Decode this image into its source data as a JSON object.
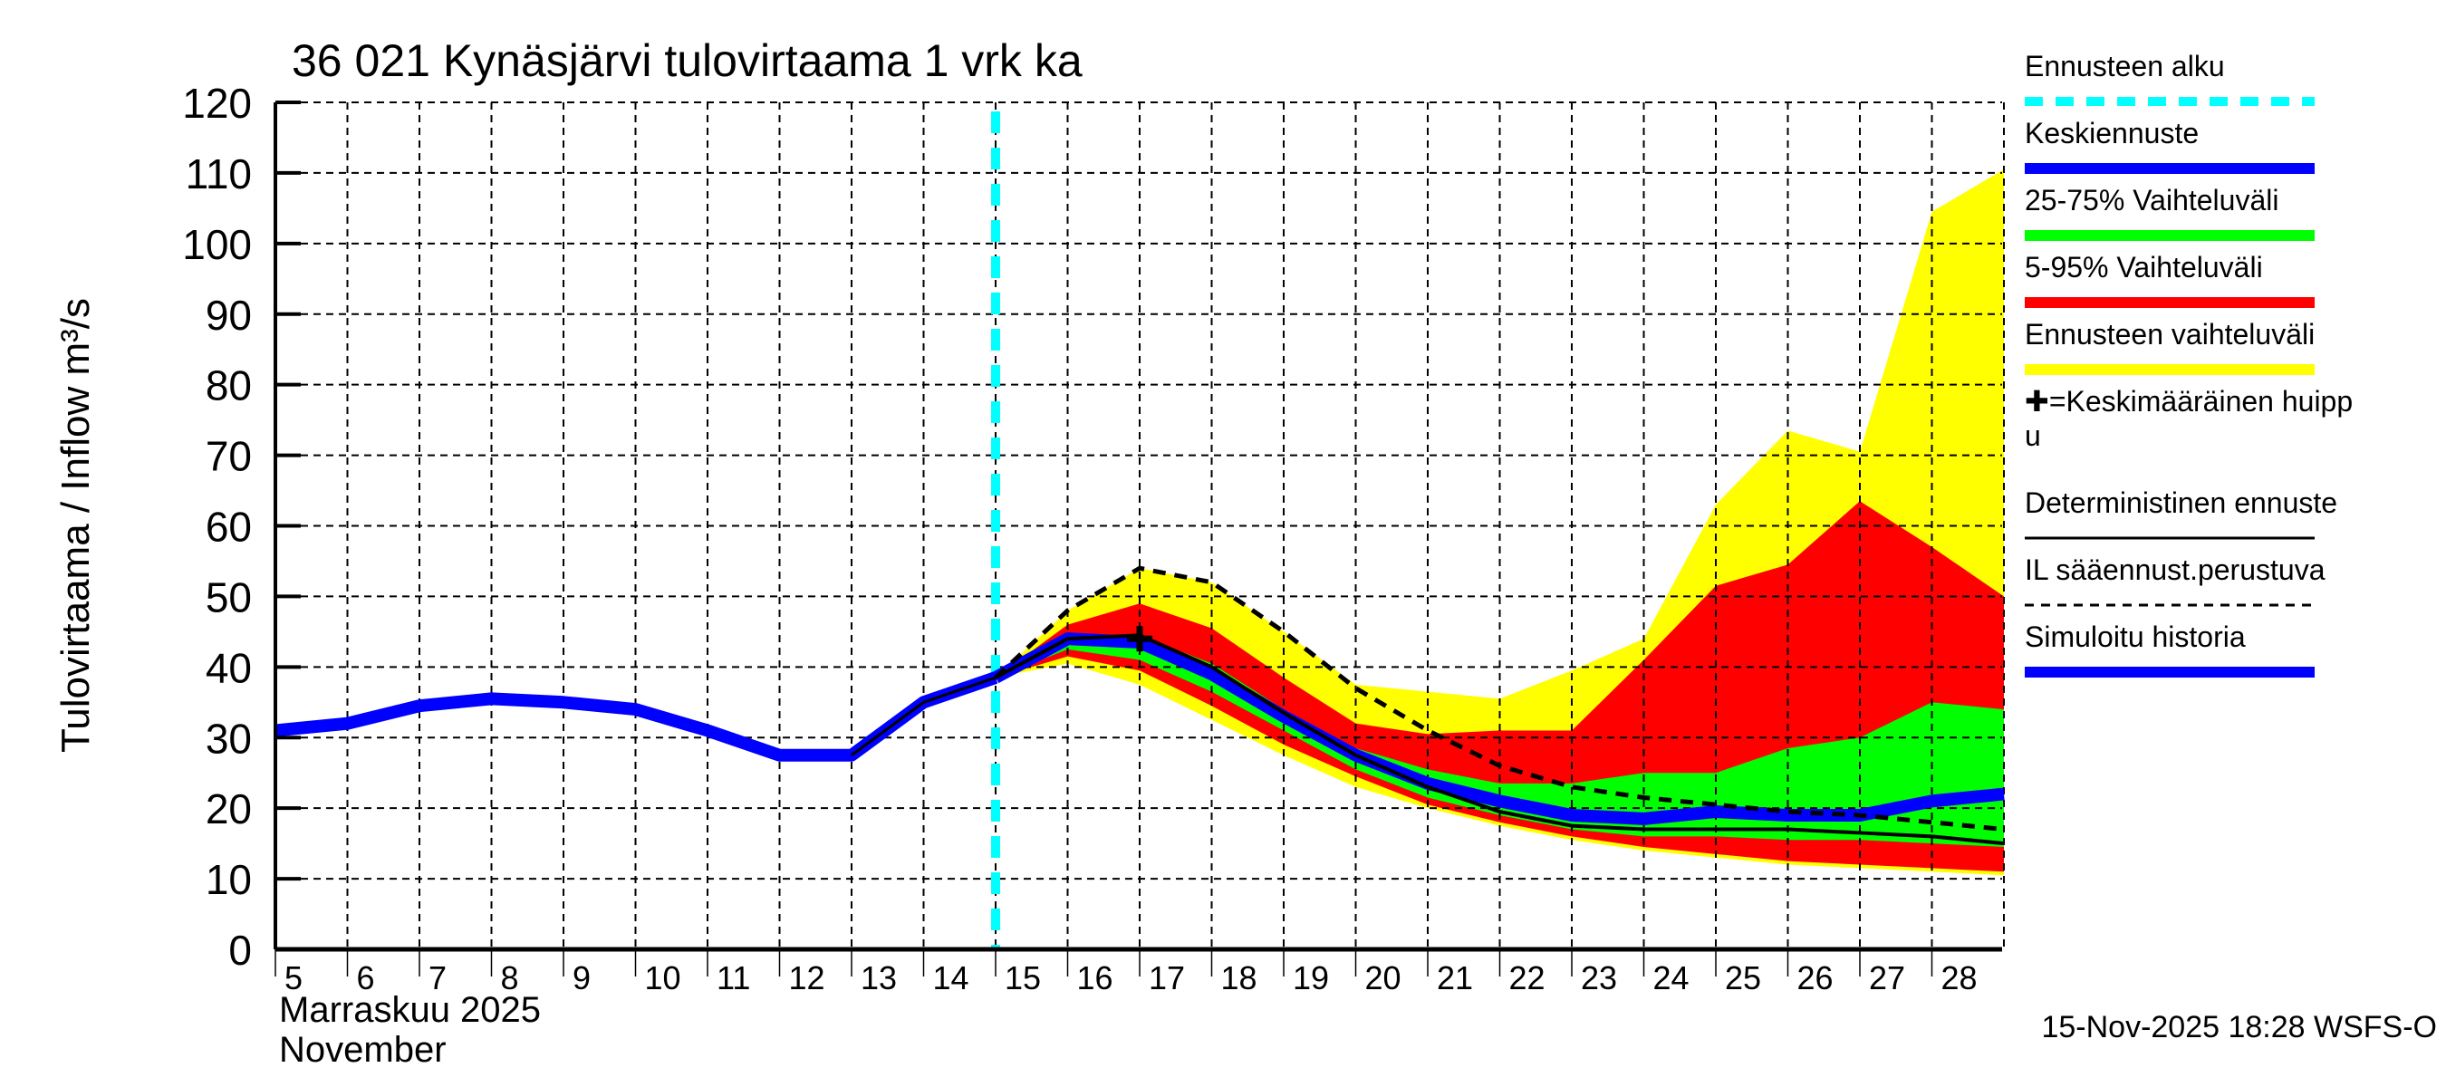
{
  "title": "36 021 Kynäsjärvi tulovirtaama 1 vrk ka",
  "y_axis_label": "Tulovirtaama / Inflow    m³/s",
  "x_axis_label_fi": "Marraskuu 2025",
  "x_axis_label_en": "November",
  "footer_timestamp": "15-Nov-2025 18:28 WSFS-O",
  "colors": {
    "forecast_start": "#00FFFF",
    "mean_forecast": "#0000FF",
    "band_25_75": "#00FF00",
    "band_5_95": "#FF0000",
    "band_full": "#FFFF00",
    "deterministic": "#000000",
    "simulated_history": "#0000FF"
  },
  "legend": [
    {
      "label": "Ennusteen alku",
      "style": "cyan-dashed"
    },
    {
      "label": "Keskiennuste",
      "style": "blue-solid"
    },
    {
      "label": "25-75% Vaihteluväli",
      "style": "green-solid"
    },
    {
      "label": "5-95% Vaihteluväli",
      "style": "red-solid"
    },
    {
      "label": "Ennusteen vaihteluväli",
      "style": "yellow-solid"
    },
    {
      "label": "✚=Keskimääräinen huipp",
      "label2": "u",
      "style": "none"
    },
    {
      "label": "Deterministinen ennuste",
      "style": "black-thin"
    },
    {
      "label": "IL sääennust.perustuva",
      "style": "black-dashed"
    },
    {
      "label": "Simuloitu historia",
      "style": "blue-solid"
    }
  ],
  "chart_data": {
    "type": "area",
    "title": "36 021 Kynäsjärvi tulovirtaama 1 vrk ka",
    "xlabel": "Marraskuu 2025 / November",
    "ylabel": "Tulovirtaama / Inflow m³/s",
    "ylim": [
      0,
      120
    ],
    "yticks": [
      0,
      10,
      20,
      30,
      40,
      50,
      60,
      70,
      80,
      90,
      100,
      110,
      120
    ],
    "xticks": [
      "5",
      "6",
      "7",
      "8",
      "9",
      "10",
      "11",
      "12",
      "13",
      "14",
      "15",
      "16",
      "17",
      "18",
      "19",
      "20",
      "21",
      "22",
      "23",
      "24",
      "25",
      "26",
      "27",
      "28"
    ],
    "xlim_days": [
      5,
      29
    ],
    "grid": true,
    "legend_position": "right",
    "forecast_start_day": 15,
    "simulated_history": {
      "x": [
        5,
        6,
        7,
        8,
        9,
        10,
        11,
        12,
        13,
        14,
        15
      ],
      "y": [
        31,
        32,
        34.5,
        35.5,
        35,
        34,
        31,
        27.5,
        27.5,
        35,
        38.5
      ]
    },
    "forecast_x": [
      15,
      16,
      17,
      18,
      19,
      20,
      21,
      22,
      23,
      24,
      25,
      26,
      27,
      28,
      29
    ],
    "series": [
      {
        "name": "Ennusteen vaihteluväli (max)",
        "values": [
          38.5,
          48,
          54,
          52,
          45,
          37.5,
          36.5,
          35.5,
          39.5,
          44,
          63,
          73.5,
          70.5,
          104.5,
          110.5
        ]
      },
      {
        "name": "5-95% upper",
        "values": [
          38.5,
          46,
          49,
          45.5,
          38.5,
          32,
          30.5,
          31,
          31,
          41,
          51.5,
          54.5,
          63.5,
          57,
          50
        ]
      },
      {
        "name": "25-75% upper",
        "values": [
          38.5,
          44.5,
          44.5,
          40.5,
          34,
          28.5,
          25.5,
          23.5,
          23.5,
          25,
          25,
          28.5,
          30,
          35,
          34
        ]
      },
      {
        "name": "Keskiennuste",
        "values": [
          38.5,
          44,
          43.5,
          39,
          33,
          27.5,
          23.5,
          21,
          19,
          18.5,
          19.5,
          19,
          19,
          21,
          22
        ]
      },
      {
        "name": "25-75% lower",
        "values": [
          38.5,
          42.5,
          41,
          36.5,
          31,
          25.5,
          21.5,
          19,
          17,
          16,
          16,
          15.5,
          15.5,
          15,
          14.5
        ]
      },
      {
        "name": "5-95% lower",
        "values": [
          38.5,
          41.5,
          39.5,
          34.5,
          29,
          24.5,
          20.5,
          18,
          16,
          14.5,
          13.5,
          12.5,
          12,
          11.5,
          11
        ]
      },
      {
        "name": "Ennusteen vaihteluväli (min)",
        "values": [
          38.5,
          40.5,
          37.5,
          32.5,
          27.5,
          23,
          20,
          17.5,
          15.5,
          14,
          13,
          12,
          11.5,
          11,
          10.5
        ]
      },
      {
        "name": "Deterministinen ennuste",
        "values": [
          38.5,
          44,
          44.5,
          40,
          33.5,
          27.5,
          23,
          19.5,
          17.5,
          17,
          17,
          17,
          16.5,
          16,
          15
        ]
      },
      {
        "name": "IL sääennust.perustuva",
        "values": [
          38.5,
          48,
          54,
          52,
          45,
          37,
          31,
          26,
          23,
          21.5,
          20.5,
          19.5,
          19,
          18,
          17
        ]
      }
    ],
    "mean_peak": {
      "x": 17,
      "y": 44,
      "marker": "+"
    }
  }
}
